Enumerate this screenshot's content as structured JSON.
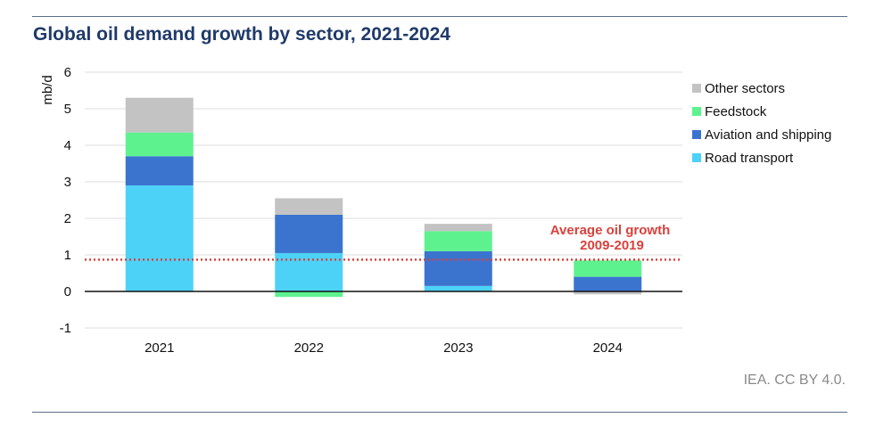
{
  "header": {
    "title": "Global oil demand growth by sector, 2021-2024"
  },
  "footer": {
    "credit": "IEA. CC BY 4.0."
  },
  "chart_data": {
    "type": "bar",
    "stacked": true,
    "title": "Global oil demand growth by sector, 2021-2024",
    "ylabel": "mb/d",
    "xlabel": "",
    "ylim": [
      -1,
      6
    ],
    "yticks": [
      -1,
      0,
      1,
      2,
      3,
      4,
      5,
      6
    ],
    "grid": true,
    "legend_position": "right",
    "categories": [
      "2021",
      "2022",
      "2023",
      "2024"
    ],
    "series": [
      {
        "name": "Road transport",
        "color": "#4dd2f7",
        "values": [
          2.9,
          1.05,
          0.15,
          0.0
        ]
      },
      {
        "name": "Aviation and shipping",
        "color": "#3b74cf",
        "values": [
          0.8,
          1.05,
          0.95,
          0.4
        ]
      },
      {
        "name": "Feedstock",
        "color": "#5ef28f",
        "values": [
          0.65,
          -0.15,
          0.55,
          0.45
        ]
      },
      {
        "name": "Other sectors",
        "color": "#c3c3c3",
        "values": [
          0.95,
          0.45,
          0.2,
          -0.08
        ]
      }
    ],
    "reference_line": {
      "value": 0.87,
      "color": "#d9413c",
      "label_line1": "Average oil growth",
      "label_line2": "2009-2019"
    }
  }
}
